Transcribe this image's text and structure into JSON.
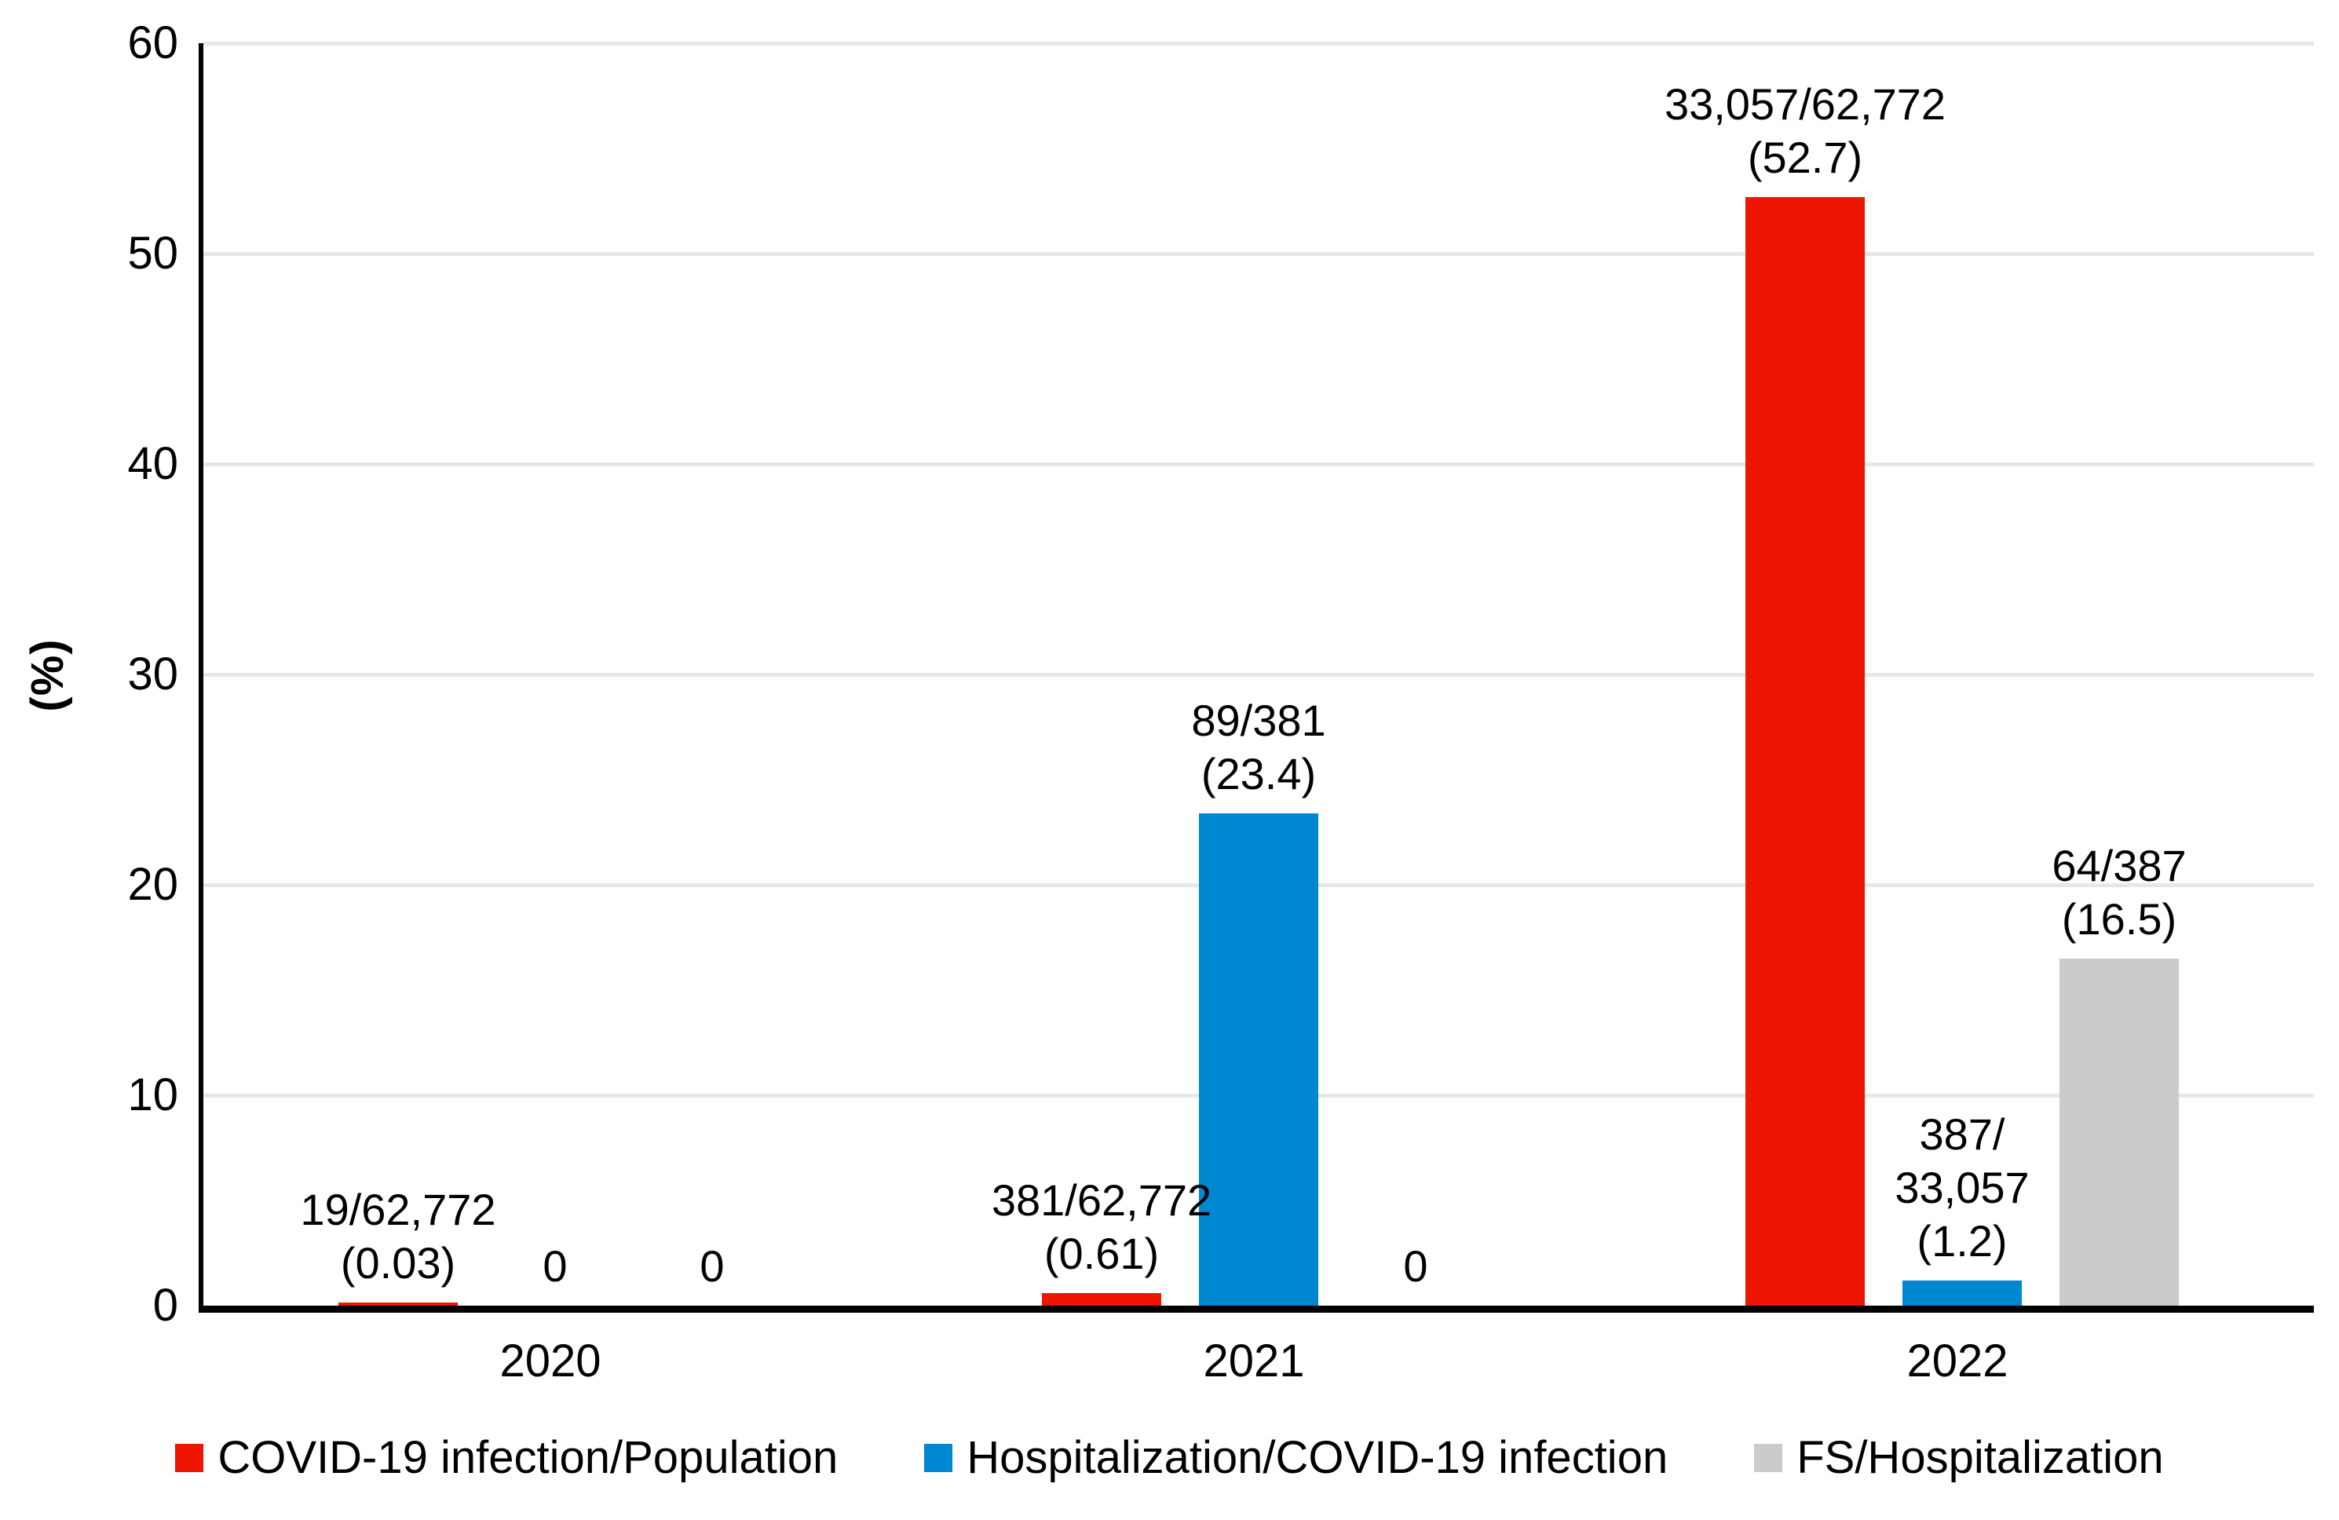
{
  "chart_data": {
    "type": "bar",
    "title": "",
    "xlabel": "",
    "ylabel": "(%)",
    "ylim": [
      0,
      60
    ],
    "yticks": [
      0,
      10,
      20,
      30,
      40,
      50,
      60
    ],
    "grid": true,
    "legend_position": "bottom",
    "categories": [
      "2020",
      "2021",
      "2022"
    ],
    "series": [
      {
        "name": "COVID-19 infection/Population",
        "color": "#ee1602",
        "values": [
          0.03,
          0.61,
          52.7
        ],
        "bar_labels": [
          "19/62,772\n(0.03)",
          "381/62,772\n(0.61)",
          "33,057/62,772\n(52.7)"
        ]
      },
      {
        "name": "Hospitalization/COVID-19 infection",
        "color": "#0087d1",
        "values": [
          0,
          23.4,
          1.2
        ],
        "bar_labels": [
          "0",
          "89/381\n(23.4)",
          "387/\n33,057\n(1.2)"
        ]
      },
      {
        "name": "FS/Hospitalization",
        "color": "#cbcbcb",
        "values": [
          0,
          0,
          16.5
        ],
        "bar_labels": [
          "0",
          "0",
          "64/387\n(16.5)"
        ]
      }
    ]
  }
}
